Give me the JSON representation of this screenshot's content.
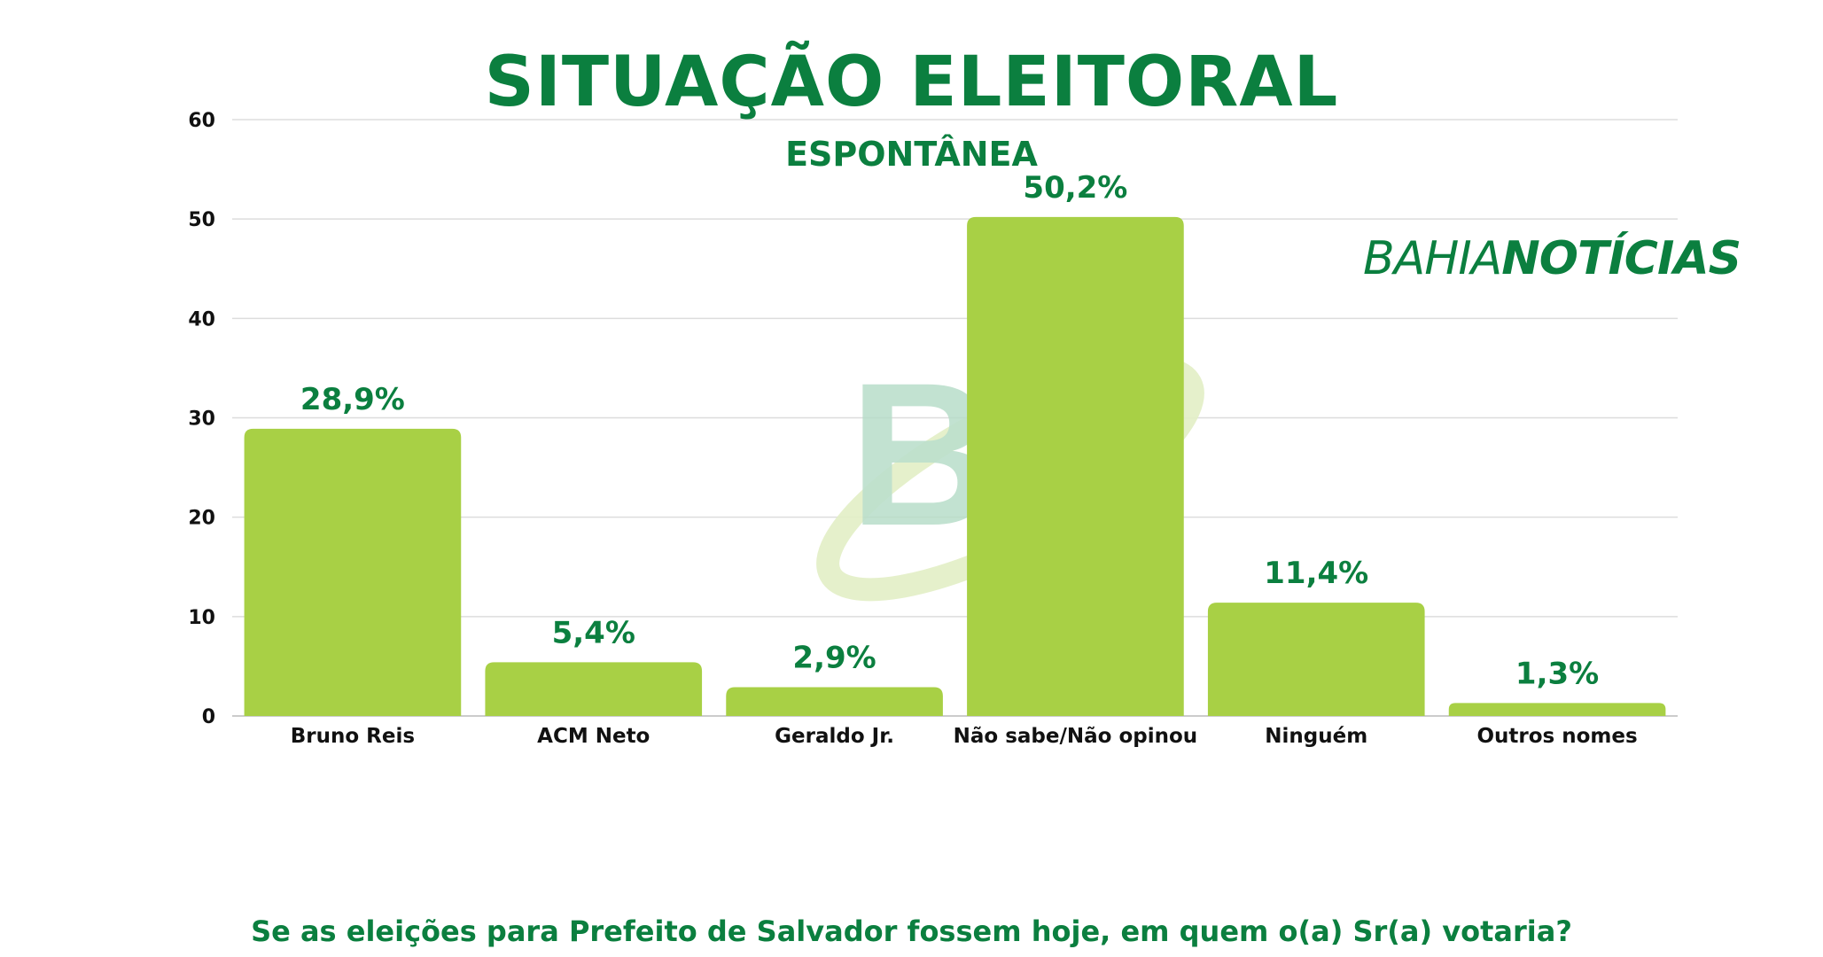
{
  "title": "SITUAÇÃO ELEITORAL",
  "subtitle": "ESPONTÂNEA",
  "question": "Se as eleições para Prefeito de Salvador fossem hoje, em quem o(a) Sr(a) votaria?",
  "brand": {
    "part1": "BAHIA",
    "part2": "NOTÍCIAS",
    "watermark": "BN"
  },
  "colors": {
    "bar": "#a8d045",
    "accent": "#0b7f3f",
    "grid": "#dddddd"
  },
  "chart_data": {
    "type": "bar",
    "categories": [
      "Bruno Reis",
      "ACM Neto",
      "Geraldo Jr.",
      "Não sabe/Não opinou",
      "Ninguém",
      "Outros nomes"
    ],
    "values": [
      28.9,
      5.4,
      2.9,
      50.2,
      11.4,
      1.3
    ],
    "labels": [
      "28,9%",
      "5,4%",
      "2,9%",
      "50,2%",
      "11,4%",
      "1,3%"
    ],
    "yticks": [
      0,
      10,
      20,
      30,
      40,
      50,
      60
    ],
    "ylim": [
      0,
      60
    ],
    "grid": true
  }
}
